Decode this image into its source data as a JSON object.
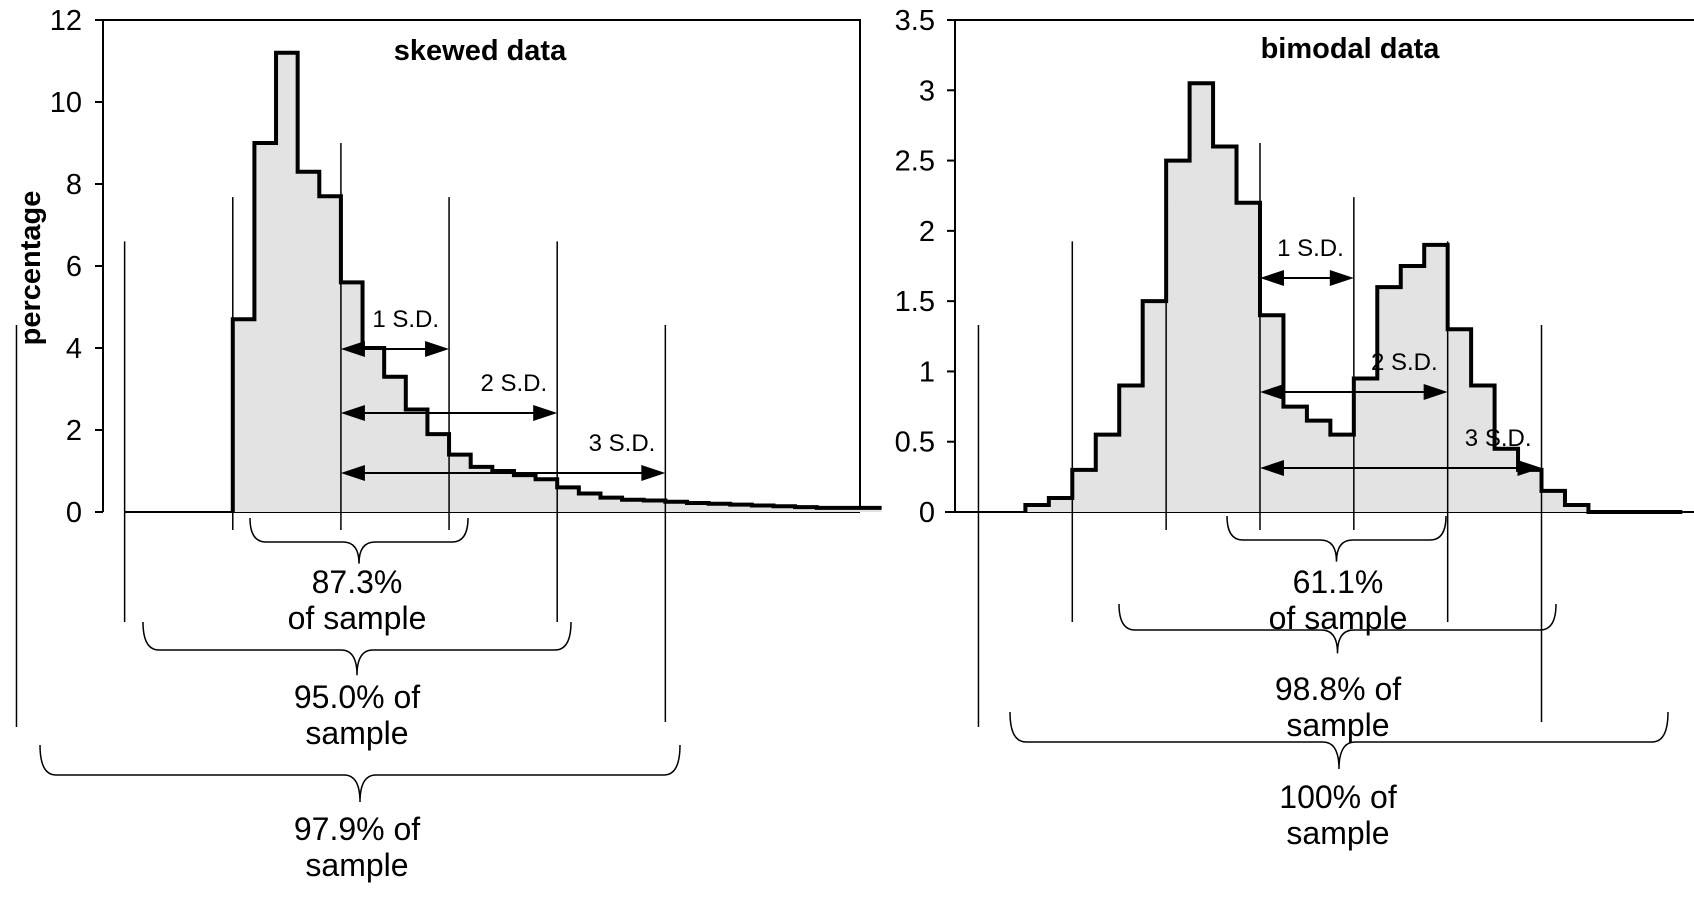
{
  "chart_data": [
    {
      "type": "area",
      "title": "skewed data",
      "ylabel": "percentage",
      "xlabel": "",
      "ylim": [
        0,
        12
      ],
      "yticks": [
        0,
        2,
        4,
        6,
        8,
        10,
        12
      ],
      "grid": false,
      "x_domain": [
        0,
        35
      ],
      "x_axis_start": 1,
      "series": [
        {
          "x": [
            6,
            7,
            8,
            9,
            10,
            11,
            12,
            13,
            14,
            15,
            16,
            17,
            18,
            19,
            20,
            21,
            22,
            23,
            24,
            25,
            26,
            27,
            28,
            29,
            30,
            31,
            32,
            33,
            34,
            35
          ],
          "values": [
            4.7,
            9.0,
            11.2,
            8.3,
            7.7,
            5.6,
            4.0,
            3.3,
            2.5,
            1.9,
            1.4,
            1.1,
            1.0,
            0.9,
            0.8,
            0.6,
            0.45,
            0.35,
            0.3,
            0.28,
            0.25,
            0.22,
            0.2,
            0.18,
            0.16,
            0.14,
            0.12,
            0.1,
            0.1,
            0.1
          ]
        }
      ],
      "sd_markers": {
        "mean": 11,
        "sd": 5
      },
      "sd_labels": [
        "1 S.D.",
        "2 S.D.",
        "3 S.D."
      ],
      "annotations": [
        {
          "lines": [
            "87.3%",
            "of sample"
          ]
        },
        {
          "lines": [
            "95.0% of",
            "sample"
          ]
        },
        {
          "lines": [
            "97.9% of",
            "sample"
          ]
        }
      ]
    },
    {
      "type": "area",
      "title": "bimodal data",
      "ylabel": "",
      "xlabel": "",
      "ylim": [
        0,
        3.5
      ],
      "yticks": [
        0,
        0.5,
        1,
        1.5,
        2,
        2.5,
        3,
        3.5
      ],
      "grid": false,
      "x_domain": [
        0,
        63
      ],
      "series": [
        {
          "x": [
            6,
            8,
            10,
            12,
            14,
            16,
            18,
            20,
            22,
            24,
            26,
            28,
            30,
            32,
            34,
            36,
            38,
            40,
            42,
            44,
            46,
            48,
            50,
            52,
            54,
            56,
            58,
            60
          ],
          "values": [
            0.05,
            0.1,
            0.3,
            0.55,
            0.9,
            1.5,
            2.5,
            3.05,
            2.6,
            2.2,
            1.4,
            0.75,
            0.65,
            0.55,
            0.95,
            1.6,
            1.75,
            1.9,
            1.3,
            0.9,
            0.45,
            0.3,
            0.15,
            0.05,
            0.0,
            0.0,
            0.0,
            0.0
          ]
        }
      ],
      "sd_markers": {
        "mean": 26,
        "sd": 8
      },
      "sd_labels": [
        "1 S.D.",
        "2 S.D.",
        "3 S.D."
      ],
      "annotations": [
        {
          "lines": [
            "61.1%",
            "of sample"
          ]
        },
        {
          "lines": [
            "98.8% of",
            "sample"
          ]
        },
        {
          "lines": [
            "100% of",
            "sample"
          ]
        }
      ]
    }
  ]
}
